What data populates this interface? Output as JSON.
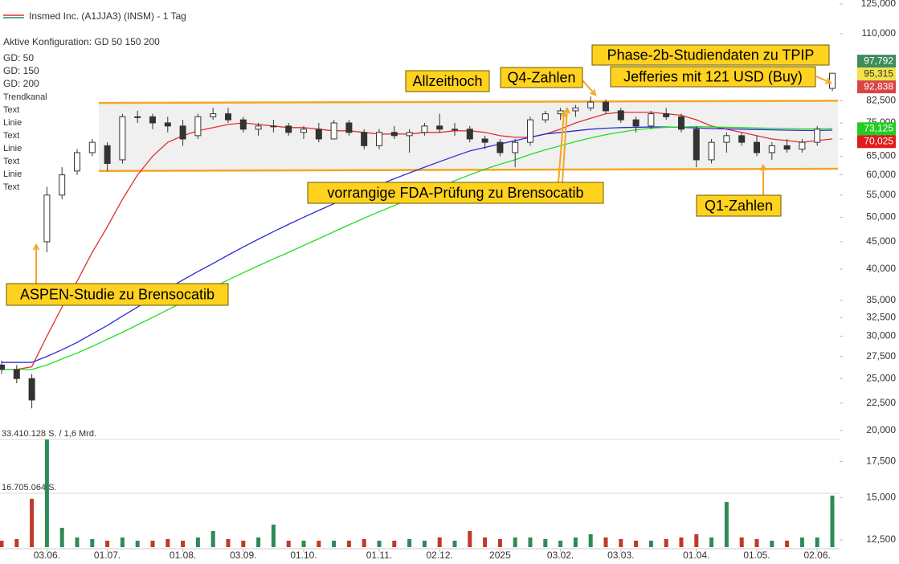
{
  "chart_data": {
    "type": "candlestick",
    "title": "Insmed Inc. (A1JJA3) (INSM) - 1 Tag",
    "subtitle": "Aktive Konfiguration: GD 50 150 200",
    "log_scale": true,
    "ylim": [
      12.5,
      125
    ],
    "yticks": [
      {
        "value": 125,
        "label": "125,000"
      },
      {
        "value": 110,
        "label": "110,000"
      },
      {
        "value": 82.5,
        "label": "82,500"
      },
      {
        "value": 75,
        "label": "75,000"
      },
      {
        "value": 70,
        "label": "70,000"
      },
      {
        "value": 65,
        "label": "65,000"
      },
      {
        "value": 60,
        "label": "60,000"
      },
      {
        "value": 55,
        "label": "55,000"
      },
      {
        "value": 50,
        "label": "50,000"
      },
      {
        "value": 45,
        "label": "45,000"
      },
      {
        "value": 40,
        "label": "40,000"
      },
      {
        "value": 35,
        "label": "35,000"
      },
      {
        "value": 32.5,
        "label": "32,500"
      },
      {
        "value": 30,
        "label": "30,000"
      },
      {
        "value": 27.5,
        "label": "27,500"
      },
      {
        "value": 25,
        "label": "25,000"
      },
      {
        "value": 22.5,
        "label": "22,500"
      },
      {
        "value": 20,
        "label": "20,000"
      },
      {
        "value": 17.5,
        "label": "17,500"
      },
      {
        "value": 15,
        "label": "15,000"
      },
      {
        "value": 12.5,
        "label": "12,500"
      }
    ],
    "categories": [
      null,
      null,
      null,
      "03.06.",
      null,
      null,
      null,
      "01.07.",
      null,
      null,
      null,
      null,
      "01.08.",
      null,
      null,
      null,
      "03.09.",
      null,
      null,
      null,
      "01.10.",
      null,
      null,
      null,
      null,
      "01.11.",
      null,
      null,
      null,
      "02.12.",
      null,
      null,
      null,
      "2025",
      null,
      null,
      null,
      "03.02.",
      null,
      null,
      null,
      "03.03.",
      null,
      null,
      null,
      null,
      "01.04.",
      null,
      null,
      null,
      "01.05.",
      null,
      null,
      null,
      "02.06.",
      null
    ],
    "ohlc": {
      "up_color": "#ffffff",
      "down_color": "#333333",
      "open": [
        26.5,
        26,
        25,
        45,
        55,
        61,
        66,
        68,
        64,
        77,
        77,
        75,
        74,
        71,
        77,
        78,
        76,
        73,
        74,
        74,
        72,
        73,
        70,
        75,
        72,
        68,
        72,
        71,
        72,
        74,
        73,
        73,
        70,
        69,
        66,
        69,
        76,
        78,
        79,
        80,
        82,
        79,
        76,
        74,
        78,
        77,
        73,
        64,
        69,
        71,
        69,
        66,
        68,
        67,
        69,
        87
      ],
      "high": [
        27,
        26.5,
        25.5,
        57,
        62,
        67,
        70,
        69,
        78,
        79,
        78,
        77,
        76,
        78,
        80,
        80,
        77,
        75,
        76,
        75,
        74,
        75,
        76,
        76,
        73,
        73,
        74,
        73,
        75,
        78,
        75,
        74,
        71,
        70,
        70,
        77,
        79,
        80,
        81,
        84,
        83,
        80,
        77,
        79,
        80,
        78,
        74,
        70,
        72,
        72,
        71,
        69,
        70,
        70,
        74,
        93
      ],
      "low": [
        25.5,
        24.5,
        22,
        43,
        54,
        60,
        65,
        61,
        63,
        75,
        73,
        72,
        68,
        70,
        76,
        75,
        72,
        71,
        72,
        71,
        70,
        69,
        70,
        71,
        67,
        67,
        70,
        66,
        71,
        72,
        71,
        69,
        67,
        65,
        62,
        68,
        75,
        76,
        77,
        79,
        78,
        75,
        72,
        73,
        76,
        72,
        62,
        63,
        66,
        68,
        65,
        64,
        66,
        66,
        68,
        86
      ],
      "close": [
        26,
        25,
        22.8,
        55,
        60,
        66,
        69,
        63,
        77,
        77,
        75,
        74,
        70,
        77,
        78,
        76,
        73,
        74,
        74,
        72,
        73,
        70,
        75,
        72,
        68,
        72,
        71,
        72,
        74,
        73,
        73,
        70,
        69,
        66,
        69,
        76,
        78,
        79,
        80,
        82,
        79,
        76,
        74,
        78,
        77,
        73,
        64,
        69,
        71,
        69,
        66,
        68,
        67,
        69,
        73,
        92.838
      ]
    },
    "series": [
      {
        "name": "GD: 50",
        "color": "#e03030",
        "values": [
          26,
          26,
          26.3,
          30,
          34,
          38,
          43,
          48,
          54,
          60,
          65,
          69,
          71,
          72.5,
          73.5,
          74.5,
          75,
          74.5,
          74,
          73.5,
          73.5,
          73,
          72.5,
          72.5,
          72,
          71.5,
          71.5,
          71.5,
          72,
          72,
          72.5,
          72.5,
          72,
          71,
          70.5,
          70.5,
          71.5,
          73,
          75,
          76.5,
          78,
          78.5,
          78.5,
          78.5,
          78,
          77.5,
          76,
          74,
          73,
          72,
          71,
          70,
          69.5,
          69,
          69.5,
          70.025
        ]
      },
      {
        "name": "GD: 150",
        "color": "#2b2bd8",
        "values": [
          26.8,
          26.8,
          26.8,
          27.5,
          28.3,
          29.2,
          30.3,
          31.4,
          32.7,
          34,
          35.4,
          36.8,
          38.2,
          39.6,
          41,
          42.5,
          44,
          45.5,
          47,
          48.5,
          50,
          51.5,
          53,
          54.5,
          56,
          57.5,
          59,
          60.5,
          62,
          63.5,
          65,
          66.5,
          67.5,
          68.5,
          69.5,
          70.5,
          71.5,
          72,
          72.5,
          73,
          73.3,
          73.5,
          73.6,
          73.7,
          73.7,
          73.6,
          73.4,
          73.2,
          73.1,
          73,
          72.9,
          72.8,
          72.7,
          72.6,
          72.6,
          72.7
        ]
      },
      {
        "name": "GD: 200",
        "color": "#22dd22",
        "values": [
          26,
          26,
          26,
          26.5,
          27.2,
          27.9,
          28.7,
          29.6,
          30.5,
          31.5,
          32.5,
          33.6,
          34.7,
          35.8,
          37,
          38.2,
          39.4,
          40.6,
          41.8,
          43,
          44.3,
          45.6,
          47,
          48.4,
          49.8,
          51.2,
          52.6,
          54,
          55.5,
          57,
          58.5,
          60,
          61.5,
          62.8,
          64,
          65.5,
          66.8,
          68,
          69.2,
          70.3,
          71.3,
          72.1,
          72.8,
          73.3,
          73.6,
          73.7,
          73.8,
          73.7,
          73.6,
          73.5,
          73.4,
          73.3,
          73.2,
          73.1,
          73.1,
          73.125
        ]
      }
    ],
    "legend_items": [
      {
        "name": "Trendkanal",
        "color": "#f0a000"
      },
      {
        "name": "Text",
        "color": "#333333"
      },
      {
        "name": "Linie",
        "color": "#f0a000"
      },
      {
        "name": "Text",
        "color": "#333333"
      },
      {
        "name": "Linie",
        "color": "#f0a000"
      },
      {
        "name": "Text",
        "color": "#333333"
      },
      {
        "name": "Linie",
        "color": "#f0a000"
      },
      {
        "name": "Text",
        "color": "#333333"
      }
    ],
    "trend_channel": {
      "color": "#f5a623",
      "upper": [
        81.7,
        82.5
      ],
      "lower": [
        61,
        61.6
      ]
    },
    "price_tags": [
      {
        "value": 97.792,
        "label": "97,792",
        "color": "#3d8c5c"
      },
      {
        "value": 95.315,
        "label": "95,315",
        "color": "#f2e34a"
      },
      {
        "value": 92.838,
        "label": "92,838",
        "color": "#d84545"
      },
      {
        "value": 73.125,
        "label": "73,125",
        "color": "#22cc22"
      },
      {
        "value": 70.025,
        "label": "70,025",
        "color": "#e01c1c"
      }
    ],
    "annotations": [
      {
        "text": "ASPEN-Studie zu Brensocatib"
      },
      {
        "text": "Allzeithoch"
      },
      {
        "text": "Q4-Zahlen"
      },
      {
        "text": "vorrangige FDA-Prüfung zu Brensocatib"
      },
      {
        "text": "Q1-Zahlen"
      },
      {
        "text": "Phase-2b-Studiendaten zu TPIP"
      },
      {
        "text": "Jefferies mit 121 USD (Buy)"
      }
    ],
    "volume": {
      "up_color": "#2e8b57",
      "down_color": "#c0392b",
      "ylim": [
        0,
        33410128
      ],
      "yticks": [
        {
          "value": 33410128,
          "label": "33.410.128 S. / 1,6 Mrd."
        },
        {
          "value": 16705064,
          "label": "16.705.064 S."
        }
      ],
      "values": [
        2000000,
        2500000,
        15000000,
        33410128,
        6000000,
        3000000,
        2500000,
        2000000,
        3000000,
        2000000,
        2000000,
        2500000,
        2000000,
        3000000,
        5000000,
        2500000,
        2000000,
        3000000,
        7000000,
        2000000,
        2000000,
        2000000,
        2000000,
        2000000,
        2500000,
        2000000,
        2000000,
        2500000,
        2000000,
        3000000,
        2000000,
        5000000,
        3000000,
        2500000,
        3000000,
        3000000,
        2500000,
        2000000,
        3000000,
        4000000,
        3000000,
        2500000,
        2000000,
        2000000,
        2500000,
        3000000,
        4000000,
        3000000,
        14000000,
        3000000,
        2500000,
        2000000,
        2000000,
        3000000,
        3000000,
        16000000
      ]
    }
  }
}
